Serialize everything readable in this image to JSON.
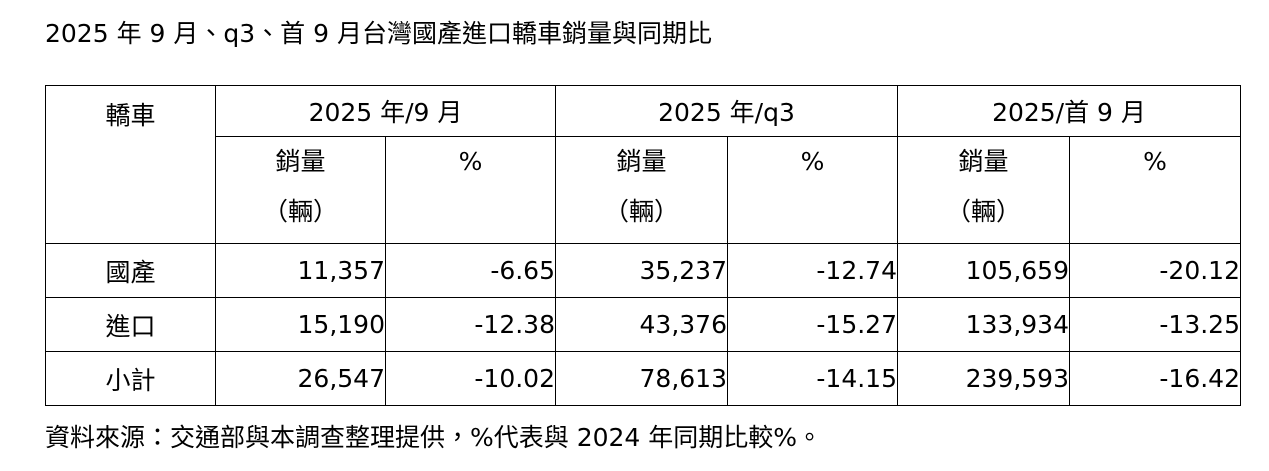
{
  "title": "2025 年 9 月、q3、首 9 月台灣國產進口轎車銷量與同期比",
  "table": {
    "corner": "轎車",
    "groups": [
      "2025 年/9 月",
      "2025 年/q3",
      "2025/首 9 月"
    ],
    "subheaders": [
      {
        "label": "銷量",
        "unit": "（輛）"
      },
      {
        "label": "%"
      },
      {
        "label": "銷量",
        "unit": "（輛）"
      },
      {
        "label": "%"
      },
      {
        "label": "銷量",
        "unit": "（輛）"
      },
      {
        "label": "%"
      }
    ],
    "rows": [
      [
        "國產",
        "11,357",
        "-6.65",
        "35,237",
        "-12.74",
        "105,659",
        "-20.12"
      ],
      [
        "進口",
        "15,190",
        "-12.38",
        "43,376",
        "-15.27",
        "133,934",
        "-13.25"
      ],
      [
        "小計",
        "26,547",
        "-10.02",
        "78,613",
        "-14.15",
        "239,593",
        "-16.42"
      ]
    ]
  },
  "footnote": "資料來源：交通部與本調查整理提供，%代表與 2024 年同期比較%。"
}
